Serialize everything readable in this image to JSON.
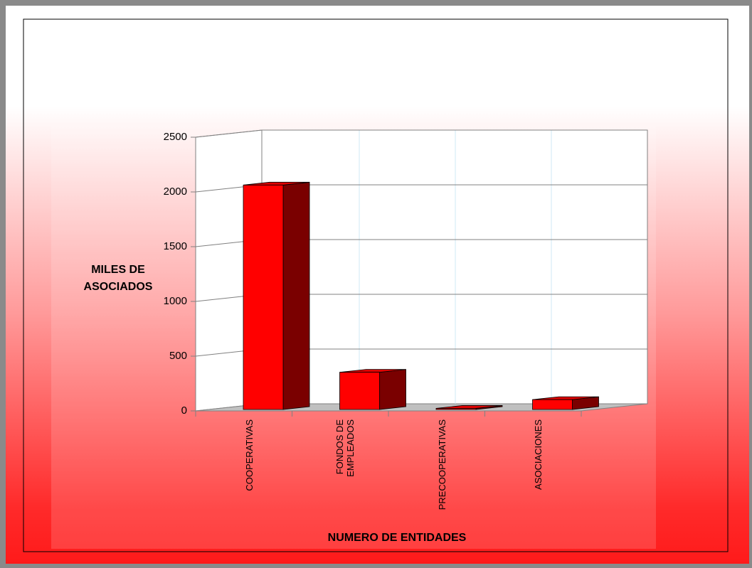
{
  "chart_data": {
    "type": "bar",
    "y_label": "MILES DE ASOCIADOS",
    "x_label": "NUMERO DE ENTIDADES",
    "categories": [
      "COOPERATIVAS",
      "FONDOS DE EMPLEADOS",
      "PRECOOPERATIVAS",
      "ASOCIACIONES"
    ],
    "values": [
      2050,
      340,
      10,
      90
    ],
    "color": "#ff0000",
    "ylim": [
      0,
      2500
    ],
    "yticks": [
      0,
      500,
      1000,
      1500,
      2000,
      2500
    ],
    "grid": true
  }
}
